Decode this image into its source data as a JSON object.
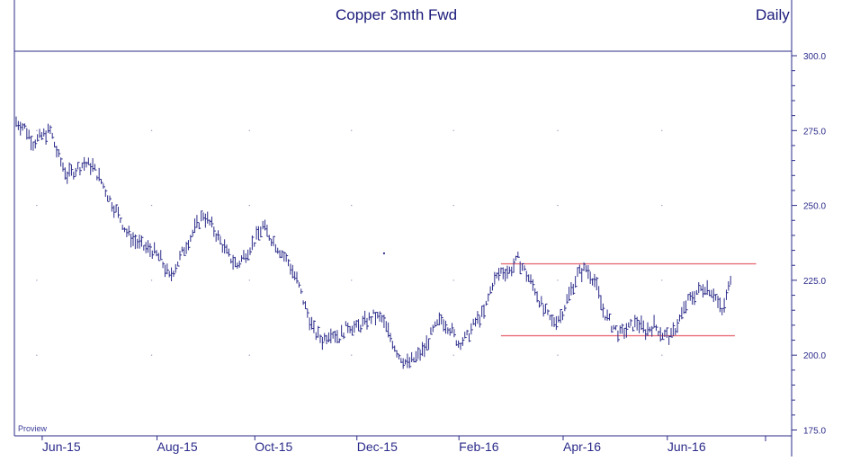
{
  "chart_data": {
    "type": "ohlc",
    "title": "Copper 3mth Fwd",
    "period": "Daily",
    "watermark": "Proview",
    "y_axis": {
      "ticks": [
        "300.0",
        "275.0",
        "250.0",
        "225.0",
        "200.0",
        "175.0"
      ],
      "ylim": [
        172,
        300
      ],
      "position": "right"
    },
    "x_axis": {
      "ticks": [
        "Jun-15",
        "Aug-15",
        "Oct-15",
        "Dec-15",
        "Feb-16",
        "Apr-16",
        "Jun-16"
      ]
    },
    "grid": "dotted",
    "colors": {
      "price": "#2b2b8a",
      "lines": "#e8707a",
      "text": "#1a1a7a",
      "axis": "#2b2b8a"
    },
    "series": [
      {
        "values": [
          [
            0,
            278
          ],
          [
            4,
            276
          ],
          [
            8,
            271
          ],
          [
            12,
            273
          ],
          [
            16,
            275
          ],
          [
            20,
            266
          ],
          [
            24,
            260
          ],
          [
            28,
            262
          ],
          [
            32,
            264
          ],
          [
            36,
            263
          ],
          [
            40,
            258
          ],
          [
            44,
            252
          ],
          [
            48,
            247
          ],
          [
            52,
            241
          ],
          [
            56,
            238
          ],
          [
            60,
            236
          ],
          [
            64,
            235
          ],
          [
            68,
            232
          ],
          [
            72,
            226
          ],
          [
            76,
            231
          ],
          [
            80,
            237
          ],
          [
            84,
            242
          ],
          [
            88,
            247
          ],
          [
            92,
            243
          ],
          [
            96,
            238
          ],
          [
            100,
            233
          ],
          [
            104,
            230
          ],
          [
            108,
            234
          ],
          [
            112,
            238
          ],
          [
            116,
            243
          ],
          [
            120,
            239
          ],
          [
            124,
            235
          ],
          [
            128,
            231
          ],
          [
            132,
            225
          ],
          [
            136,
            216
          ],
          [
            140,
            208
          ],
          [
            144,
            205
          ],
          [
            148,
            208
          ],
          [
            152,
            206
          ],
          [
            156,
            210
          ],
          [
            160,
            209
          ],
          [
            164,
            211
          ],
          [
            168,
            213
          ],
          [
            172,
            212
          ],
          [
            176,
            206
          ],
          [
            180,
            200
          ],
          [
            184,
            197
          ],
          [
            188,
            199
          ],
          [
            192,
            202
          ],
          [
            196,
            208
          ],
          [
            200,
            212
          ],
          [
            204,
            209
          ],
          [
            208,
            204
          ],
          [
            212,
            206
          ],
          [
            216,
            211
          ],
          [
            220,
            214
          ],
          [
            224,
            224
          ],
          [
            228,
            228
          ],
          [
            232,
            228
          ],
          [
            236,
            232
          ],
          [
            240,
            227
          ],
          [
            244,
            222
          ],
          [
            248,
            215
          ],
          [
            252,
            211
          ],
          [
            256,
            213
          ],
          [
            260,
            220
          ],
          [
            264,
            227
          ],
          [
            268,
            229
          ],
          [
            272,
            225
          ],
          [
            276,
            215
          ],
          [
            280,
            210
          ],
          [
            284,
            207
          ],
          [
            288,
            209
          ],
          [
            292,
            211
          ],
          [
            296,
            208
          ],
          [
            300,
            210
          ],
          [
            304,
            207
          ],
          [
            308,
            206
          ],
          [
            312,
            212
          ],
          [
            316,
            218
          ],
          [
            320,
            221
          ],
          [
            324,
            223
          ],
          [
            328,
            221
          ],
          [
            332,
            214
          ],
          [
            336,
            225
          ]
        ]
      }
    ],
    "annotations": [
      {
        "type": "horizontal_line",
        "y": 230.5,
        "from_day": 228,
        "to_day": 348
      },
      {
        "type": "horizontal_line",
        "y": 206.5,
        "from_day": 228,
        "to_day": 338
      },
      {
        "type": "marker",
        "day": 173,
        "y": 234
      }
    ],
    "x_tick_days": [
      8,
      62,
      108,
      156,
      204,
      253,
      302
    ]
  }
}
